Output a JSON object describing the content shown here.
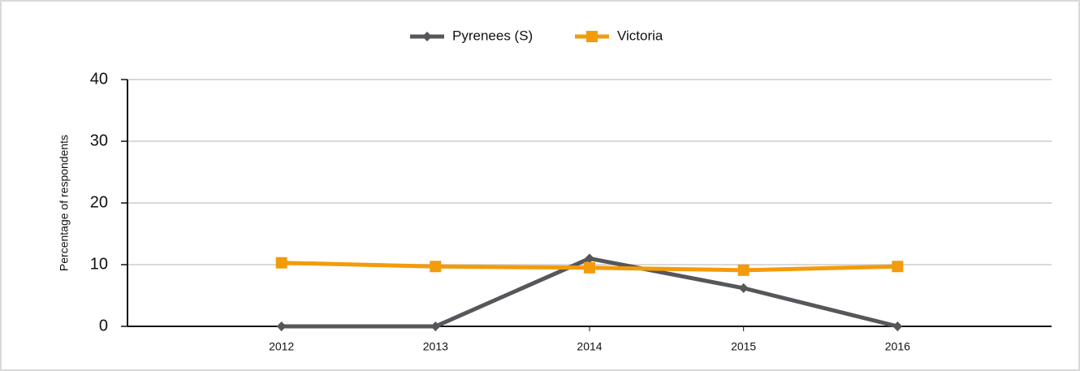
{
  "chart_data": {
    "type": "line",
    "categories": [
      "2012",
      "2013",
      "2014",
      "2015",
      "2016"
    ],
    "series": [
      {
        "name": "Pyrenees (S)",
        "color": "#55575b",
        "marker": "diamond",
        "values": [
          0,
          0,
          11,
          6.2,
          0
        ]
      },
      {
        "name": "Victoria",
        "color": "#f29b0b",
        "marker": "square",
        "values": [
          10.3,
          9.7,
          9.5,
          9.1,
          9.7
        ]
      }
    ],
    "ylabel": "Percentage of respondents",
    "ylim": [
      0,
      40
    ],
    "yticks": [
      0,
      10,
      20,
      30,
      40
    ],
    "grid": true,
    "legend": "top"
  }
}
